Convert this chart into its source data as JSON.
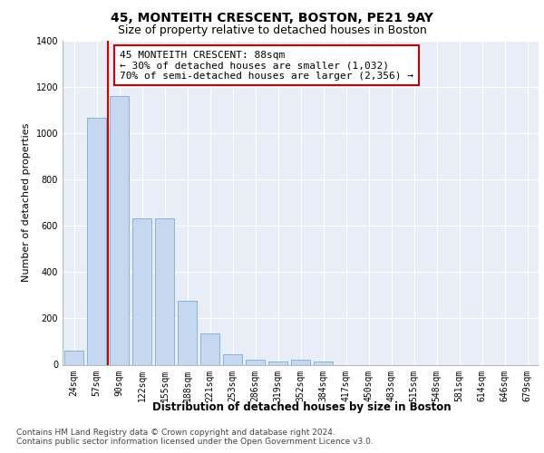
{
  "title1": "45, MONTEITH CRESCENT, BOSTON, PE21 9AY",
  "title2": "Size of property relative to detached houses in Boston",
  "xlabel": "Distribution of detached houses by size in Boston",
  "ylabel": "Number of detached properties",
  "categories": [
    "24sqm",
    "57sqm",
    "90sqm",
    "122sqm",
    "155sqm",
    "188sqm",
    "221sqm",
    "253sqm",
    "286sqm",
    "319sqm",
    "352sqm",
    "384sqm",
    "417sqm",
    "450sqm",
    "483sqm",
    "515sqm",
    "548sqm",
    "581sqm",
    "614sqm",
    "646sqm",
    "679sqm"
  ],
  "values": [
    62,
    1068,
    1162,
    632,
    632,
    275,
    135,
    46,
    20,
    15,
    20,
    12,
    0,
    0,
    0,
    0,
    0,
    0,
    0,
    0,
    0
  ],
  "bar_color": "#c5d8f0",
  "bar_edge_color": "#7aadd4",
  "highlight_line_color": "#cc0000",
  "highlight_line_index": 2,
  "annotation_text": "45 MONTEITH CRESCENT: 88sqm\n← 30% of detached houses are smaller (1,032)\n70% of semi-detached houses are larger (2,356) →",
  "annotation_box_color": "#cc0000",
  "annotation_box_fill": "#ffffff",
  "ylim": [
    0,
    1400
  ],
  "yticks": [
    0,
    200,
    400,
    600,
    800,
    1000,
    1200,
    1400
  ],
  "plot_bg_color": "#e8eef8",
  "grid_color": "#ffffff",
  "footer": "Contains HM Land Registry data © Crown copyright and database right 2024.\nContains public sector information licensed under the Open Government Licence v3.0.",
  "title1_fontsize": 10,
  "title2_fontsize": 9,
  "xlabel_fontsize": 8.5,
  "ylabel_fontsize": 8,
  "tick_fontsize": 7,
  "annotation_fontsize": 8,
  "footer_fontsize": 6.5
}
